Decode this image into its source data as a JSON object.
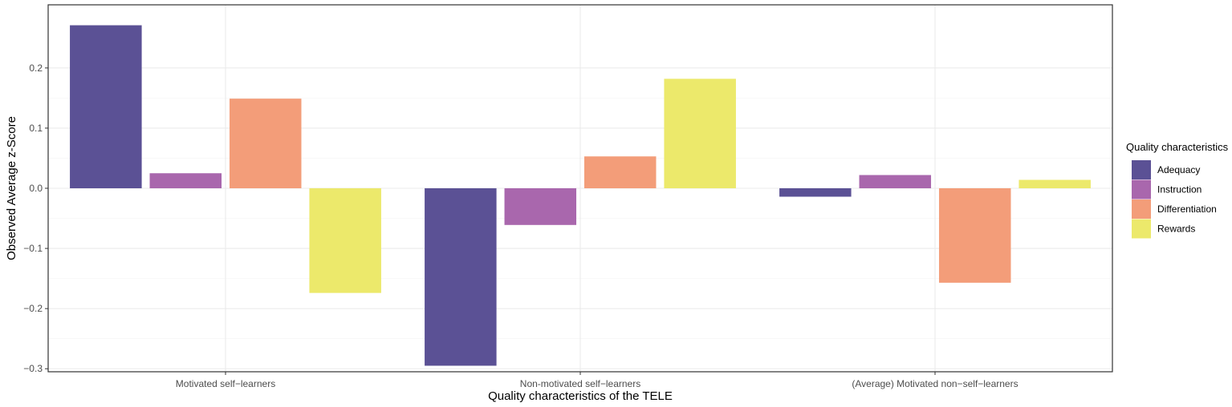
{
  "chart_data": {
    "type": "bar",
    "xlabel": "Quality characteristics of the TELE",
    "ylabel": "Observed Average z-Score",
    "categories": [
      "Motivated self−learners",
      "Non-motivated self−learners",
      "(Average) Motivated non−self−learners"
    ],
    "series": [
      {
        "name": "Adequacy",
        "color": "#5b5195",
        "values": [
          0.271,
          -0.295,
          -0.014
        ]
      },
      {
        "name": "Instruction",
        "color": "#a967ad",
        "values": [
          0.025,
          -0.061,
          0.022
        ]
      },
      {
        "name": "Differentiation",
        "color": "#f39d79",
        "values": [
          0.149,
          0.053,
          -0.157
        ]
      },
      {
        "name": "Rewards",
        "color": "#ece96b",
        "values": [
          -0.174,
          0.182,
          0.014
        ]
      }
    ],
    "ylim": [
      -0.305,
      0.305
    ],
    "yticks": [
      -0.3,
      -0.2,
      -0.1,
      0.0,
      0.1,
      0.2
    ],
    "ytick_labels": [
      "−0.3",
      "−0.2",
      "−0.1",
      "0.0",
      "0.1",
      "0.2"
    ],
    "grid": true,
    "legend": {
      "title": "Quality characteristics",
      "position": "right"
    }
  }
}
